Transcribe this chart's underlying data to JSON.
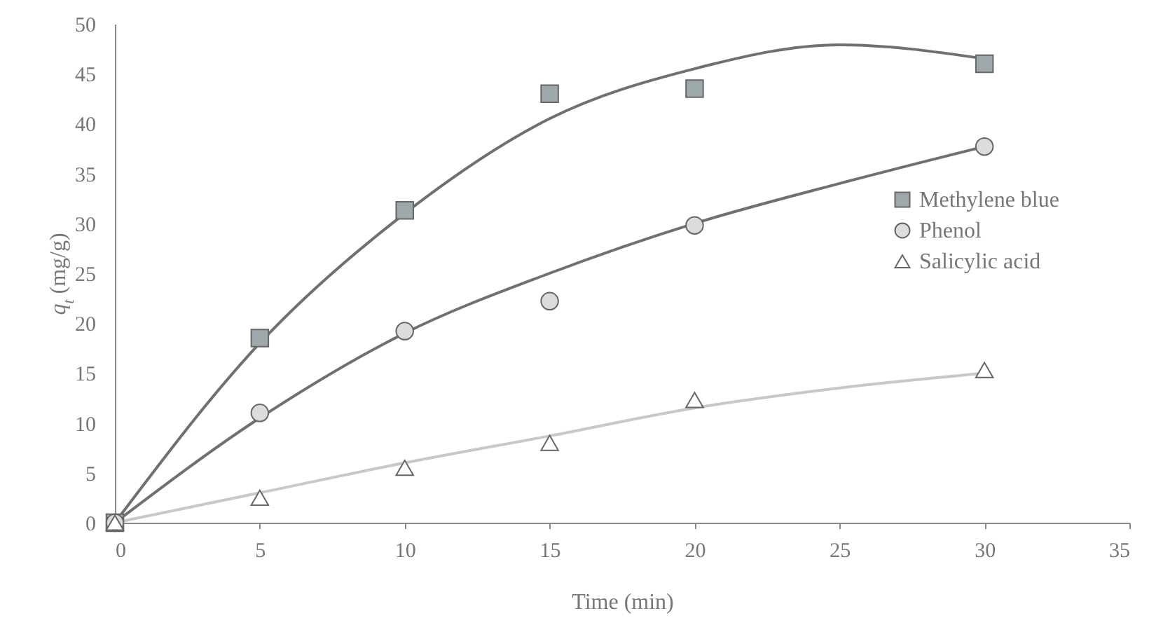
{
  "chart_data": {
    "type": "scatter",
    "xlabel": "Time (min)",
    "ylabel": "q$_{t}$ (mg/g)",
    "xlim": [
      0,
      35
    ],
    "xticks": [
      0,
      5,
      10,
      15,
      20,
      25,
      30,
      35
    ],
    "ylim": [
      0,
      50
    ],
    "yticks": [
      0,
      5,
      10,
      15,
      20,
      25,
      30,
      35,
      40,
      45,
      50
    ],
    "legend": "right",
    "grid": false,
    "series": [
      {
        "name": "Methylene blue",
        "type": "scatter",
        "marker": "square",
        "color": "#9fa9ab",
        "x": [
          0,
          5,
          10,
          15,
          20,
          30
        ],
        "values": [
          0,
          18.5,
          31.3,
          43,
          43.5,
          46
        ]
      },
      {
        "name": "Phenol",
        "type": "scatter",
        "marker": "circle",
        "color": "#dcdcdc",
        "x": [
          0,
          5,
          10,
          15,
          20,
          30
        ],
        "values": [
          0,
          11,
          19.2,
          22.2,
          29.8,
          37.7
        ]
      },
      {
        "name": "Salicylic acid",
        "type": "scatter",
        "marker": "triangle",
        "color": "#ffffff",
        "x": [
          0,
          5,
          10,
          15,
          20,
          30
        ],
        "values": [
          0,
          2.5,
          5.5,
          8,
          12.3,
          15.3
        ]
      },
      {
        "type": "line",
        "color": "#707070",
        "x": [
          0,
          5,
          10,
          15,
          20,
          25,
          30
        ],
        "values": [
          0,
          18,
          31,
          40.5,
          45.5,
          47.9,
          46.5
        ]
      },
      {
        "type": "line",
        "color": "#707070",
        "x": [
          0,
          5,
          10,
          15,
          20,
          25,
          30
        ],
        "values": [
          0,
          10.5,
          19,
          25,
          30,
          34,
          37.7
        ]
      },
      {
        "type": "line",
        "color": "#c8c8c8",
        "x": [
          0,
          5,
          10,
          15,
          20,
          25,
          30
        ],
        "values": [
          0,
          3,
          6,
          8.7,
          11.5,
          13.5,
          15
        ]
      }
    ]
  }
}
